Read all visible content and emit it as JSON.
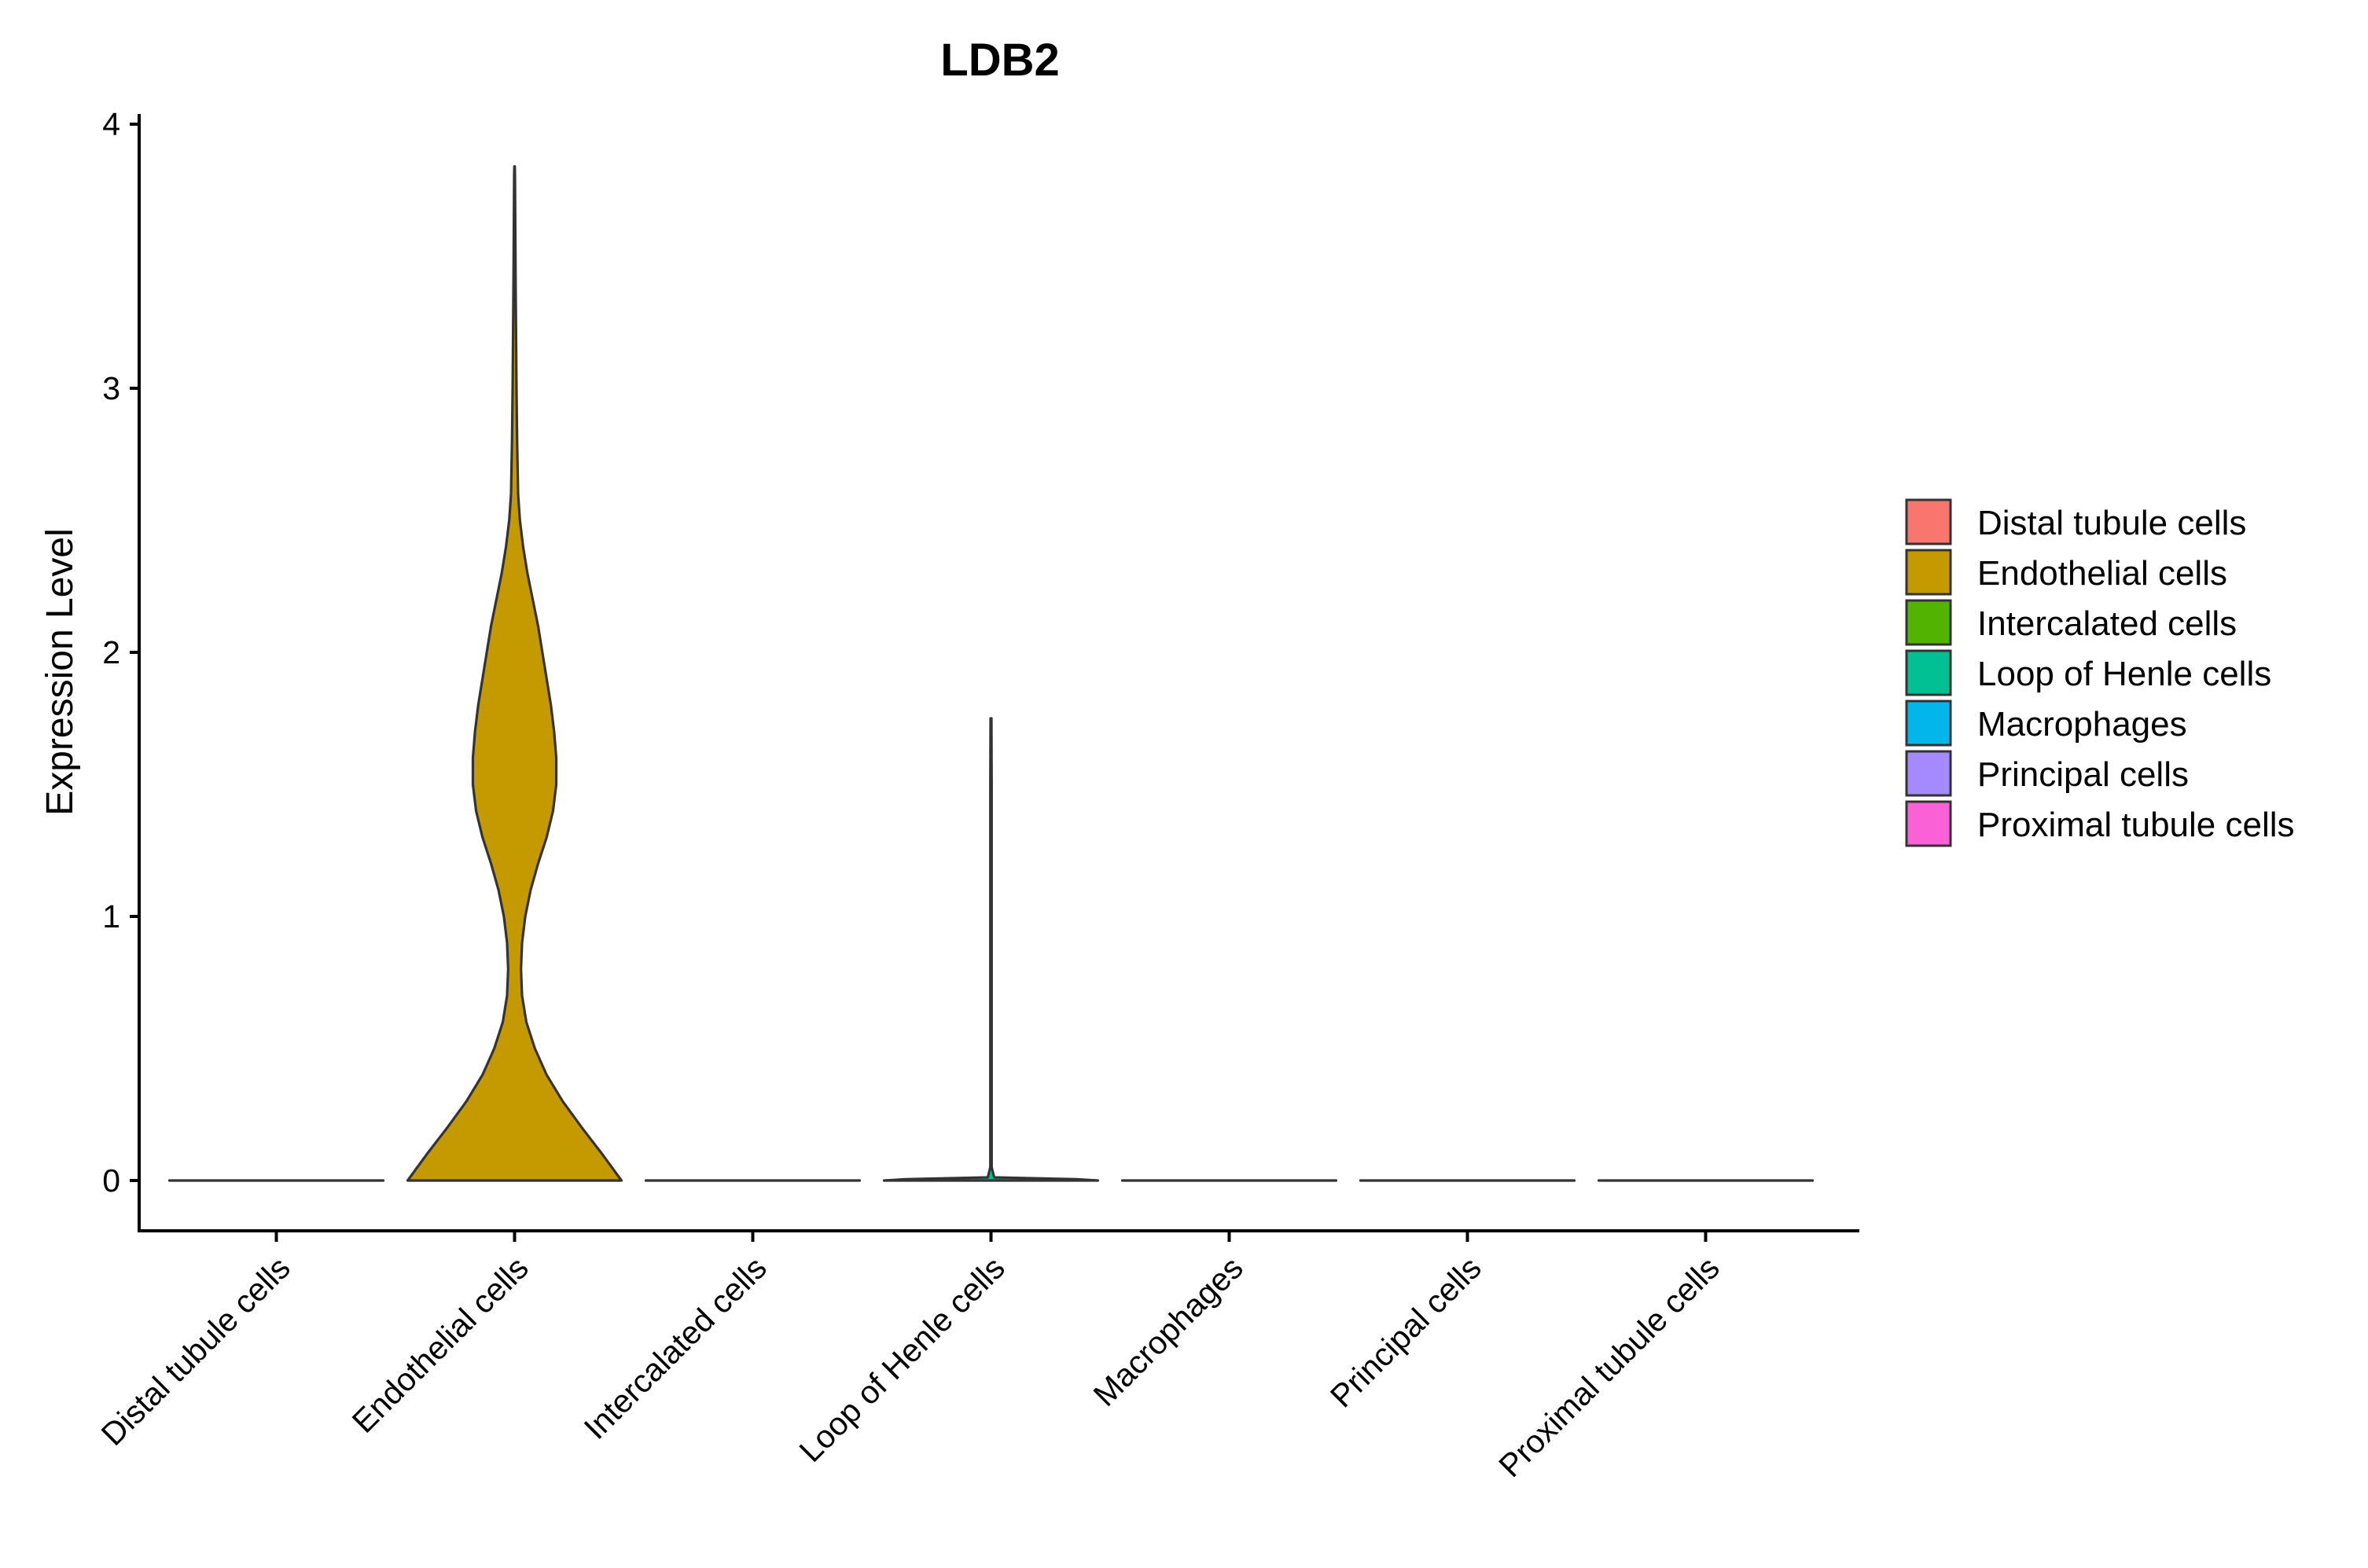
{
  "chart_data": {
    "type": "violin",
    "title": "LDB2",
    "xlabel": "",
    "ylabel": "Expression Level",
    "ylim": [
      -0.19,
      4.04
    ],
    "yticks": [
      0,
      1,
      2,
      3,
      4
    ],
    "ytick_labels": [
      "0",
      "1",
      "2",
      "3",
      "4"
    ],
    "grid": false,
    "legend_position": "right",
    "categories": [
      "Distal tubule cells",
      "Endothelial cells",
      "Intercalated cells",
      "Loop of Henle cells",
      "Macrophages",
      "Principal cells",
      "Proximal tubule cells"
    ],
    "colors": [
      "#F8766D",
      "#C49A00",
      "#53B400",
      "#00C094",
      "#00B6EB",
      "#A58AFF",
      "#FB61D7"
    ],
    "outline_color": "#333333",
    "series": [
      {
        "name": "Distal tubule cells",
        "max": 0,
        "density": [
          [
            0,
            1.0
          ]
        ]
      },
      {
        "name": "Endothelial cells",
        "max": 3.84,
        "density": [
          [
            0.0,
            1.0
          ],
          [
            0.1,
            0.82
          ],
          [
            0.2,
            0.63
          ],
          [
            0.3,
            0.45
          ],
          [
            0.4,
            0.3
          ],
          [
            0.5,
            0.19
          ],
          [
            0.6,
            0.11
          ],
          [
            0.7,
            0.07
          ],
          [
            0.8,
            0.06
          ],
          [
            0.9,
            0.07
          ],
          [
            1.0,
            0.1
          ],
          [
            1.1,
            0.15
          ],
          [
            1.2,
            0.22
          ],
          [
            1.3,
            0.3
          ],
          [
            1.4,
            0.36
          ],
          [
            1.5,
            0.39
          ],
          [
            1.6,
            0.39
          ],
          [
            1.7,
            0.37
          ],
          [
            1.8,
            0.34
          ],
          [
            1.9,
            0.3
          ],
          [
            2.0,
            0.26
          ],
          [
            2.1,
            0.22
          ],
          [
            2.2,
            0.17
          ],
          [
            2.3,
            0.12
          ],
          [
            2.4,
            0.08
          ],
          [
            2.5,
            0.05
          ],
          [
            2.6,
            0.033
          ],
          [
            2.8,
            0.024
          ],
          [
            3.0,
            0.018
          ],
          [
            3.2,
            0.014
          ],
          [
            3.4,
            0.01
          ],
          [
            3.6,
            0.007
          ],
          [
            3.8,
            0.004
          ],
          [
            3.84,
            0.002
          ]
        ]
      },
      {
        "name": "Intercalated cells",
        "max": 0,
        "density": [
          [
            0,
            1.0
          ]
        ]
      },
      {
        "name": "Loop of Henle cells",
        "max": 1.75,
        "density": [
          [
            0.0,
            1.0
          ],
          [
            0.005,
            0.8
          ],
          [
            0.012,
            0.03
          ],
          [
            0.05,
            0.006
          ],
          [
            0.5,
            0.006
          ],
          [
            1.0,
            0.006
          ],
          [
            1.5,
            0.006
          ],
          [
            1.75,
            0.004
          ]
        ]
      },
      {
        "name": "Macrophages",
        "max": 0,
        "density": [
          [
            0,
            1.0
          ]
        ]
      },
      {
        "name": "Principal cells",
        "max": 0,
        "density": [
          [
            0,
            1.0
          ]
        ]
      },
      {
        "name": "Proximal tubule cells",
        "max": 0,
        "density": [
          [
            0,
            1.0
          ]
        ]
      }
    ]
  }
}
